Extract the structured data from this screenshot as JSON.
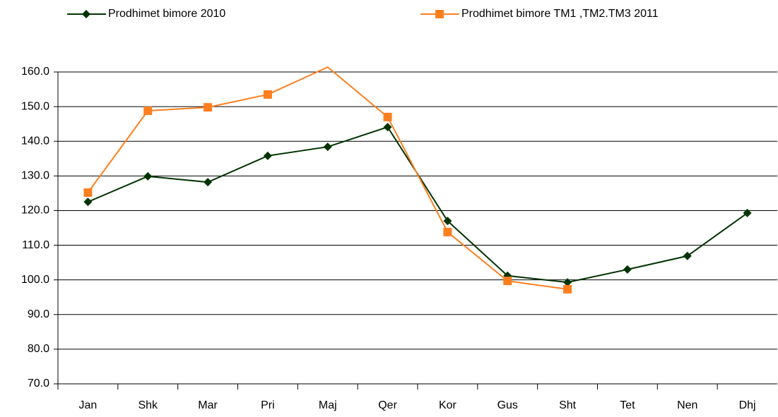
{
  "chart_data": {
    "type": "line",
    "categories": [
      "Jan",
      "Shk",
      "Mar",
      "Pri",
      "Maj",
      "Qer",
      "Kor",
      "Gus",
      "Sht",
      "Tet",
      "Nen",
      "Dhj"
    ],
    "series": [
      {
        "name": "Prodhimet bimore 2010",
        "color": "#003300",
        "marker": "diamond",
        "values": [
          122.5,
          129.9,
          128.2,
          135.8,
          138.4,
          144.1,
          117.0,
          101.2,
          99.3,
          103.0,
          106.9,
          119.3
        ]
      },
      {
        "name": "Prodhimet bimore TM1 ,TM2.TM3 2011",
        "color": "#ff7f1f",
        "marker": "square",
        "values": [
          125.2,
          148.8,
          149.8,
          153.5,
          161.4,
          147.0,
          113.8,
          99.7,
          97.3,
          null,
          null,
          null
        ]
      }
    ],
    "ylim": [
      70,
      160
    ],
    "yticks": [
      {
        "value": 70,
        "label": "70.0"
      },
      {
        "value": 80,
        "label": "80.0"
      },
      {
        "value": 90,
        "label": "90.0"
      },
      {
        "value": 100,
        "label": "100.0"
      },
      {
        "value": 110,
        "label": "110.0"
      },
      {
        "value": 120,
        "label": "120.0"
      },
      {
        "value": 130,
        "label": "130.0"
      },
      {
        "value": 140,
        "label": "140.0"
      },
      {
        "value": 150,
        "label": "150.0"
      },
      {
        "value": 160,
        "label": "160.0"
      }
    ],
    "grid": true,
    "legend": "top"
  }
}
